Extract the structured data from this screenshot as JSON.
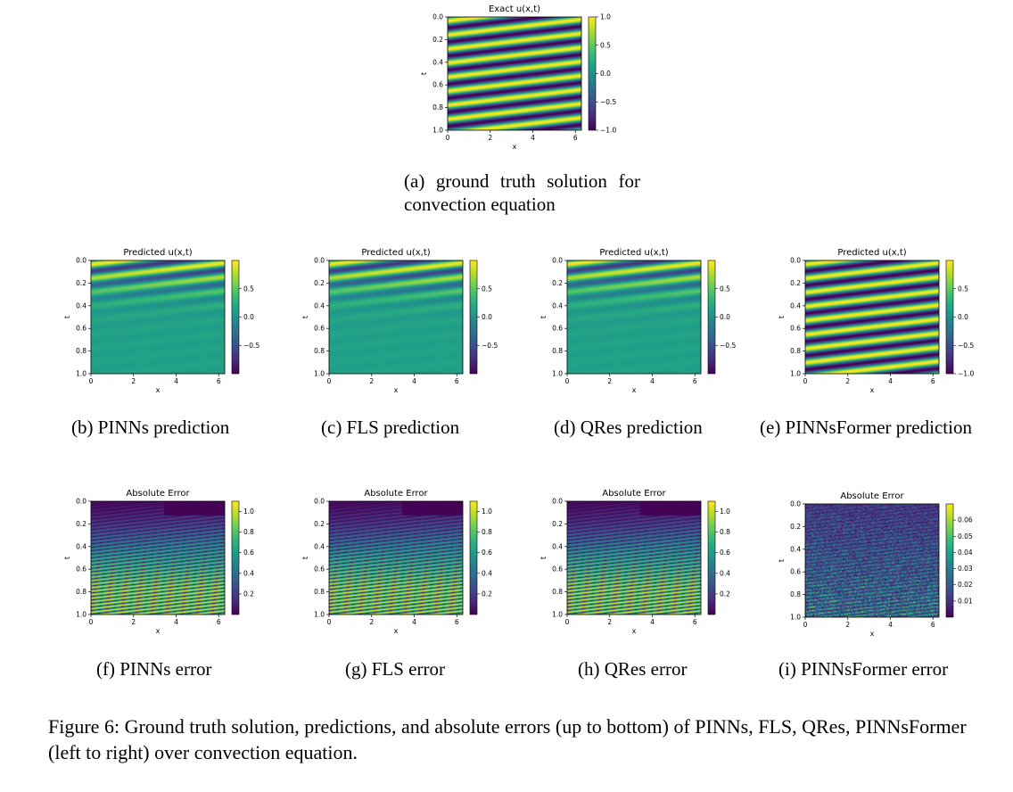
{
  "figure": {
    "caption_label": "Figure 6:",
    "caption_text": "Ground truth solution, predictions, and absolute errors (up to bottom) of PINNs, FLS, QRes, PINNsFormer (left to right) over convection equation."
  },
  "palette": {
    "viridis": [
      "#440154",
      "#482878",
      "#3e4989",
      "#31688e",
      "#26828e",
      "#1f9e89",
      "#35b779",
      "#6ece58",
      "#b5de2b",
      "#fde725"
    ]
  },
  "chart_data": [
    {
      "type": "heatmap",
      "id": "a",
      "title": "Exact u(x,t)",
      "caption": "(a) ground truth solution for convection equation",
      "xlabel": "x",
      "ylabel": "t",
      "xticks": [
        "0",
        "2",
        "4",
        "6"
      ],
      "yticks": [
        "0.0",
        "0.2",
        "0.4",
        "0.6",
        "0.8",
        "1.0"
      ],
      "colorbar": {
        "ticks": [
          "1.0",
          "0.5",
          "0.0",
          "−0.5",
          "−1.0"
        ],
        "values": [
          1.0,
          0.5,
          0.0,
          -0.5,
          -1.0
        ],
        "range": [
          -1.0,
          1.0
        ]
      },
      "field": {
        "kind": "exact",
        "stripes": 8
      }
    },
    {
      "type": "heatmap",
      "id": "b",
      "title": "Predicted u(x,t)",
      "caption": "(b) PINNs prediction",
      "xlabel": "x",
      "ylabel": "t",
      "xticks": [
        "0",
        "2",
        "4",
        "6"
      ],
      "yticks": [
        "0.0",
        "0.2",
        "0.4",
        "0.6",
        "0.8",
        "1.0"
      ],
      "colorbar": {
        "ticks": [
          "0.5",
          "0.0",
          "−0.5"
        ],
        "values": [
          0.5,
          0.0,
          -0.5
        ],
        "range": [
          -1.0,
          1.0
        ]
      },
      "field": {
        "kind": "decay",
        "stripes": 8
      }
    },
    {
      "type": "heatmap",
      "id": "c",
      "title": "Predicted u(x,t)",
      "caption": "(c) FLS prediction",
      "xlabel": "x",
      "ylabel": "t",
      "xticks": [
        "0",
        "2",
        "4",
        "6"
      ],
      "yticks": [
        "0.0",
        "0.2",
        "0.4",
        "0.6",
        "0.8",
        "1.0"
      ],
      "colorbar": {
        "ticks": [
          "0.5",
          "0.0",
          "−0.5"
        ],
        "values": [
          0.5,
          0.0,
          -0.5
        ],
        "range": [
          -1.0,
          1.0
        ]
      },
      "field": {
        "kind": "decay",
        "stripes": 8
      }
    },
    {
      "type": "heatmap",
      "id": "d",
      "title": "Predicted u(x,t)",
      "caption": "(d) QRes prediction",
      "xlabel": "x",
      "ylabel": "t",
      "xticks": [
        "0",
        "2",
        "4",
        "6"
      ],
      "yticks": [
        "0.0",
        "0.2",
        "0.4",
        "0.6",
        "0.8",
        "1.0"
      ],
      "colorbar": {
        "ticks": [
          "0.5",
          "0.0",
          "−0.5"
        ],
        "values": [
          0.5,
          0.0,
          -0.5
        ],
        "range": [
          -1.0,
          1.0
        ]
      },
      "field": {
        "kind": "decay",
        "stripes": 8
      }
    },
    {
      "type": "heatmap",
      "id": "e",
      "title": "Predicted u(x,t)",
      "caption": "(e) PINNsFormer prediction",
      "xlabel": "x",
      "ylabel": "t",
      "xticks": [
        "0",
        "2",
        "4",
        "6"
      ],
      "yticks": [
        "0.0",
        "0.2",
        "0.4",
        "0.6",
        "0.8",
        "1.0"
      ],
      "colorbar": {
        "ticks": [
          "0.5",
          "0.0",
          "−0.5",
          "−1.0"
        ],
        "values": [
          0.5,
          0.0,
          -0.5,
          -1.0
        ],
        "range": [
          -1.0,
          1.0
        ]
      },
      "field": {
        "kind": "exact",
        "stripes": 8
      }
    },
    {
      "type": "heatmap",
      "id": "f",
      "title": "Absolute Error",
      "caption": "(f) PINNs error",
      "xlabel": "x",
      "ylabel": "t",
      "xticks": [
        "0",
        "2",
        "4",
        "6"
      ],
      "yticks": [
        "0.0",
        "0.2",
        "0.4",
        "0.6",
        "0.8",
        "1.0"
      ],
      "colorbar": {
        "ticks": [
          "1.0",
          "0.8",
          "0.6",
          "0.4",
          "0.2"
        ],
        "values": [
          1.0,
          0.8,
          0.6,
          0.4,
          0.2
        ],
        "range": [
          0.0,
          1.1
        ]
      },
      "field": {
        "kind": "error",
        "stripes": 16
      }
    },
    {
      "type": "heatmap",
      "id": "g",
      "title": "Absolute Error",
      "caption": "(g) FLS error",
      "xlabel": "x",
      "ylabel": "t",
      "xticks": [
        "0",
        "2",
        "4",
        "6"
      ],
      "yticks": [
        "0.0",
        "0.2",
        "0.4",
        "0.6",
        "0.8",
        "1.0"
      ],
      "colorbar": {
        "ticks": [
          "1.0",
          "0.8",
          "0.6",
          "0.4",
          "0.2"
        ],
        "values": [
          1.0,
          0.8,
          0.6,
          0.4,
          0.2
        ],
        "range": [
          0.0,
          1.1
        ]
      },
      "field": {
        "kind": "error",
        "stripes": 16
      }
    },
    {
      "type": "heatmap",
      "id": "h",
      "title": "Absolute Error",
      "caption": "(h) QRes error",
      "xlabel": "x",
      "ylabel": "t",
      "xticks": [
        "0",
        "2",
        "4",
        "6"
      ],
      "yticks": [
        "0.0",
        "0.2",
        "0.4",
        "0.6",
        "0.8",
        "1.0"
      ],
      "colorbar": {
        "ticks": [
          "1.0",
          "0.8",
          "0.6",
          "0.4",
          "0.2"
        ],
        "values": [
          1.0,
          0.8,
          0.6,
          0.4,
          0.2
        ],
        "range": [
          0.0,
          1.1
        ]
      },
      "field": {
        "kind": "error",
        "stripes": 16
      }
    },
    {
      "type": "heatmap",
      "id": "i",
      "title": "Absolute Error",
      "caption": "(i) PINNsFormer error",
      "xlabel": "x",
      "ylabel": "t",
      "xticks": [
        "0",
        "2",
        "4",
        "6"
      ],
      "yticks": [
        "0.0",
        "0.2",
        "0.4",
        "0.6",
        "0.8",
        "1.0"
      ],
      "colorbar": {
        "ticks": [
          "0.06",
          "0.05",
          "0.04",
          "0.03",
          "0.02",
          "0.01"
        ],
        "values": [
          0.06,
          0.05,
          0.04,
          0.03,
          0.02,
          0.01
        ],
        "range": [
          0.0,
          0.07
        ]
      },
      "field": {
        "kind": "noise",
        "stripes": 16
      }
    }
  ]
}
